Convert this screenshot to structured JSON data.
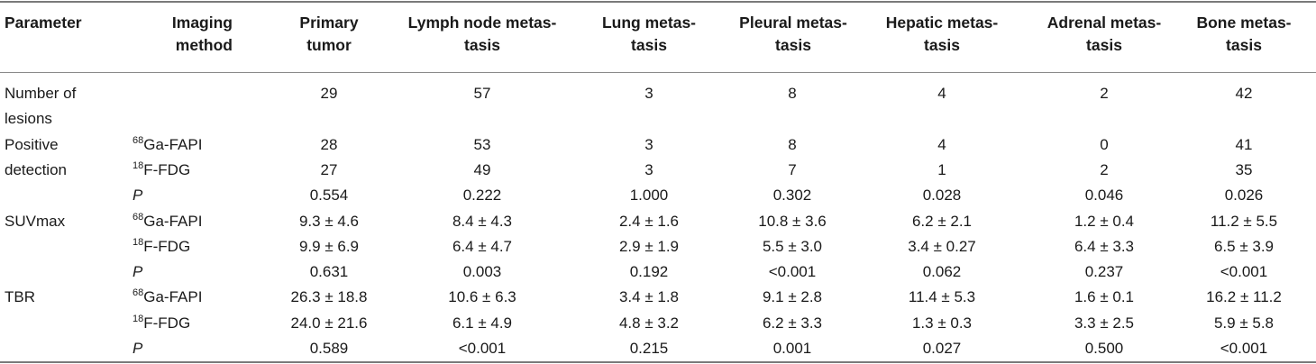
{
  "table": {
    "headers": [
      "Parameter",
      "Imaging\nmethod",
      "Primary\ntumor",
      "Lymph node metas-\ntasis",
      "Lung metas-\ntasis",
      "Pleural metas-\ntasis",
      "Hepatic metas-\ntasis",
      "Adrenal metas-\ntasis",
      "Bone metas-\ntasis"
    ],
    "rows": [
      {
        "param": "Number of",
        "sup": "",
        "method": "",
        "values": [
          "29",
          "57",
          "3",
          "8",
          "4",
          "2",
          "42"
        ]
      },
      {
        "param": "lesions",
        "sup": "",
        "method": "",
        "values": [
          "",
          "",
          "",
          "",
          "",
          "",
          ""
        ]
      },
      {
        "param": "Positive",
        "sup": "68",
        "method": "Ga-FAPI",
        "values": [
          "28",
          "53",
          "3",
          "8",
          "4",
          "0",
          "41"
        ]
      },
      {
        "param": "detection",
        "sup": "18",
        "method": "F-FDG",
        "values": [
          "27",
          "49",
          "3",
          "7",
          "1",
          "2",
          "35"
        ]
      },
      {
        "param": "",
        "sup": "",
        "method": "P",
        "values": [
          "0.554",
          "0.222",
          "1.000",
          "0.302",
          "0.028",
          "0.046",
          "0.026"
        ]
      },
      {
        "param": "SUVmax",
        "sup": "68",
        "method": "Ga-FAPI",
        "values": [
          "9.3 ± 4.6",
          "8.4 ± 4.3",
          "2.4 ± 1.6",
          "10.8 ± 3.6",
          "6.2 ± 2.1",
          "1.2 ± 0.4",
          "11.2 ± 5.5"
        ]
      },
      {
        "param": "",
        "sup": "18",
        "method": "F-FDG",
        "values": [
          "9.9 ± 6.9",
          "6.4 ± 4.7",
          "2.9 ± 1.9",
          "5.5 ± 3.0",
          "3.4 ± 0.27",
          "6.4 ± 3.3",
          "6.5 ± 3.9"
        ]
      },
      {
        "param": "",
        "sup": "",
        "method": "P",
        "values": [
          "0.631",
          "0.003",
          "0.192",
          "<0.001",
          "0.062",
          "0.237",
          "<0.001"
        ]
      },
      {
        "param": "TBR",
        "sup": "68",
        "method": "Ga-FAPI",
        "values": [
          "26.3 ± 18.8",
          "10.6 ± 6.3",
          "3.4 ± 1.8",
          "9.1 ± 2.8",
          "11.4 ± 5.3",
          "1.6 ± 0.1",
          "16.2 ± 11.2"
        ]
      },
      {
        "param": "",
        "sup": "18",
        "method": "F-FDG",
        "values": [
          "24.0 ± 21.6",
          "6.1 ± 4.9",
          "4.8 ± 3.2",
          "6.2 ± 3.3",
          "1.3 ± 0.3",
          "3.3 ± 2.5",
          "5.9 ± 5.8"
        ]
      },
      {
        "param": "",
        "sup": "",
        "method": "P",
        "values": [
          "0.589",
          "<0.001",
          "0.215",
          "0.001",
          "0.027",
          "0.500",
          "<0.001"
        ]
      }
    ]
  }
}
